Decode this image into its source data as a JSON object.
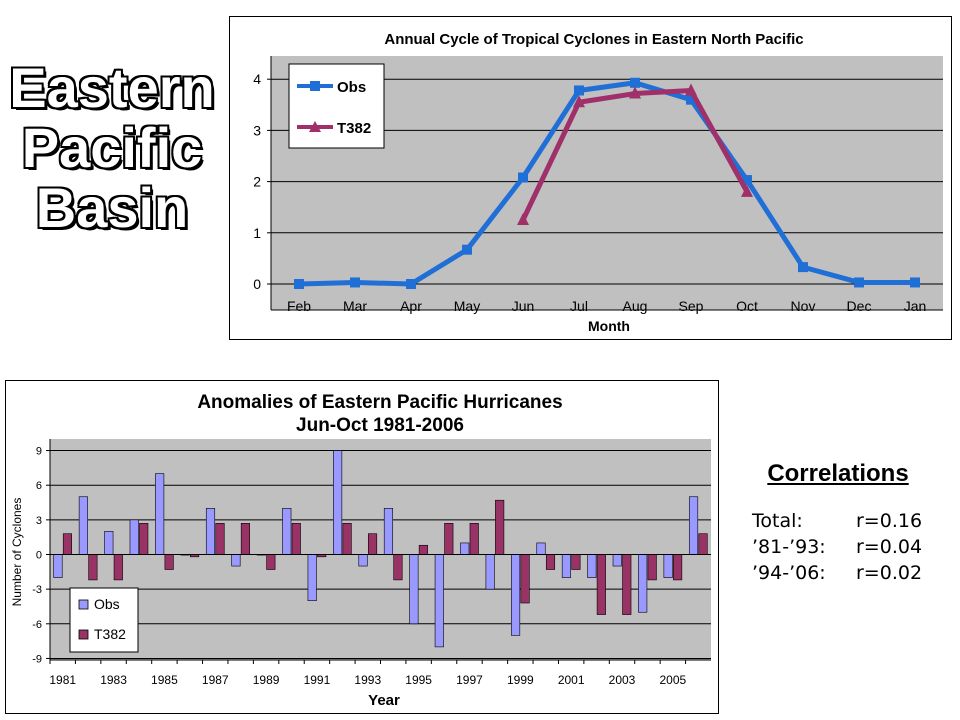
{
  "slide_title": [
    "Eastern",
    "Pacific",
    "Basin"
  ],
  "chart_data": [
    {
      "type": "line",
      "title": "Annual Cycle of Tropical Cyclones in Eastern North Pacific",
      "xlabel": "Month",
      "ylabel": "",
      "categories": [
        "Feb",
        "Mar",
        "Apr",
        "May",
        "Jun",
        "Jul",
        "Aug",
        "Sep",
        "Oct",
        "Nov",
        "Dec",
        "Jan"
      ],
      "ylim": [
        0,
        4
      ],
      "yticks": [
        "0",
        "1",
        "2",
        "3",
        "4"
      ],
      "grid": true,
      "legend_position": "top-left",
      "series": [
        {
          "name": "Obs",
          "color": "#1f6fd6",
          "marker": "square",
          "values": [
            0,
            0.03,
            0,
            0.67,
            2.08,
            3.78,
            3.93,
            3.6,
            2.03,
            0.33,
            0.03,
            0.03
          ]
        },
        {
          "name": "T382",
          "color": "#a0306a",
          "marker": "triangle",
          "values": [
            null,
            null,
            null,
            null,
            1.25,
            3.55,
            3.72,
            3.78,
            1.8,
            null,
            null,
            null
          ]
        }
      ]
    },
    {
      "type": "bar",
      "title": "Anomalies of Eastern Pacific Hurricanes",
      "subtitle": "Jun-Oct 1981-2006",
      "xlabel": "Year",
      "ylabel": "Number of Cyclones",
      "categories": [
        "1981",
        "1982",
        "1983",
        "1984",
        "1985",
        "1986",
        "1987",
        "1988",
        "1989",
        "1990",
        "1991",
        "1992",
        "1993",
        "1994",
        "1995",
        "1996",
        "1997",
        "1998",
        "1999",
        "2000",
        "2001",
        "2002",
        "2003",
        "2004",
        "2005",
        "2006"
      ],
      "xtick_labels": [
        "1981",
        "1983",
        "1985",
        "1987",
        "1989",
        "1991",
        "1993",
        "1995",
        "1997",
        "1999",
        "2001",
        "2003",
        "2005"
      ],
      "ylim": [
        -9,
        9
      ],
      "yticks": [
        "9",
        "6",
        "3",
        "0",
        "-3",
        "-6",
        "-9"
      ],
      "grid": true,
      "legend_position": "bottom-left",
      "series": [
        {
          "name": "Obs",
          "color": "#9999ff",
          "values": [
            -2,
            5,
            2,
            3,
            7,
            0,
            4,
            -1,
            0,
            4,
            -4,
            9,
            -1,
            4,
            -6,
            -8,
            1,
            -3,
            -7,
            1,
            -2,
            -2,
            -1,
            -5,
            -2,
            5
          ]
        },
        {
          "name": "T382",
          "color": "#993366",
          "values": [
            1.8,
            -2.2,
            -2.2,
            2.7,
            -1.3,
            -0.2,
            2.7,
            2.7,
            -1.3,
            2.7,
            -0.2,
            2.7,
            1.8,
            -2.2,
            0.8,
            2.7,
            2.7,
            4.7,
            -4.2,
            -1.3,
            -1.3,
            -5.2,
            -5.2,
            -2.2,
            -2.2,
            1.8
          ]
        }
      ]
    }
  ],
  "correlations": {
    "title": "Correlations",
    "rows": [
      {
        "label": "Total:",
        "value": "r=0.16"
      },
      {
        "label": "’81-’93:",
        "value": "r=0.04"
      },
      {
        "label": "’94-’06:",
        "value": "r=0.02"
      }
    ]
  }
}
